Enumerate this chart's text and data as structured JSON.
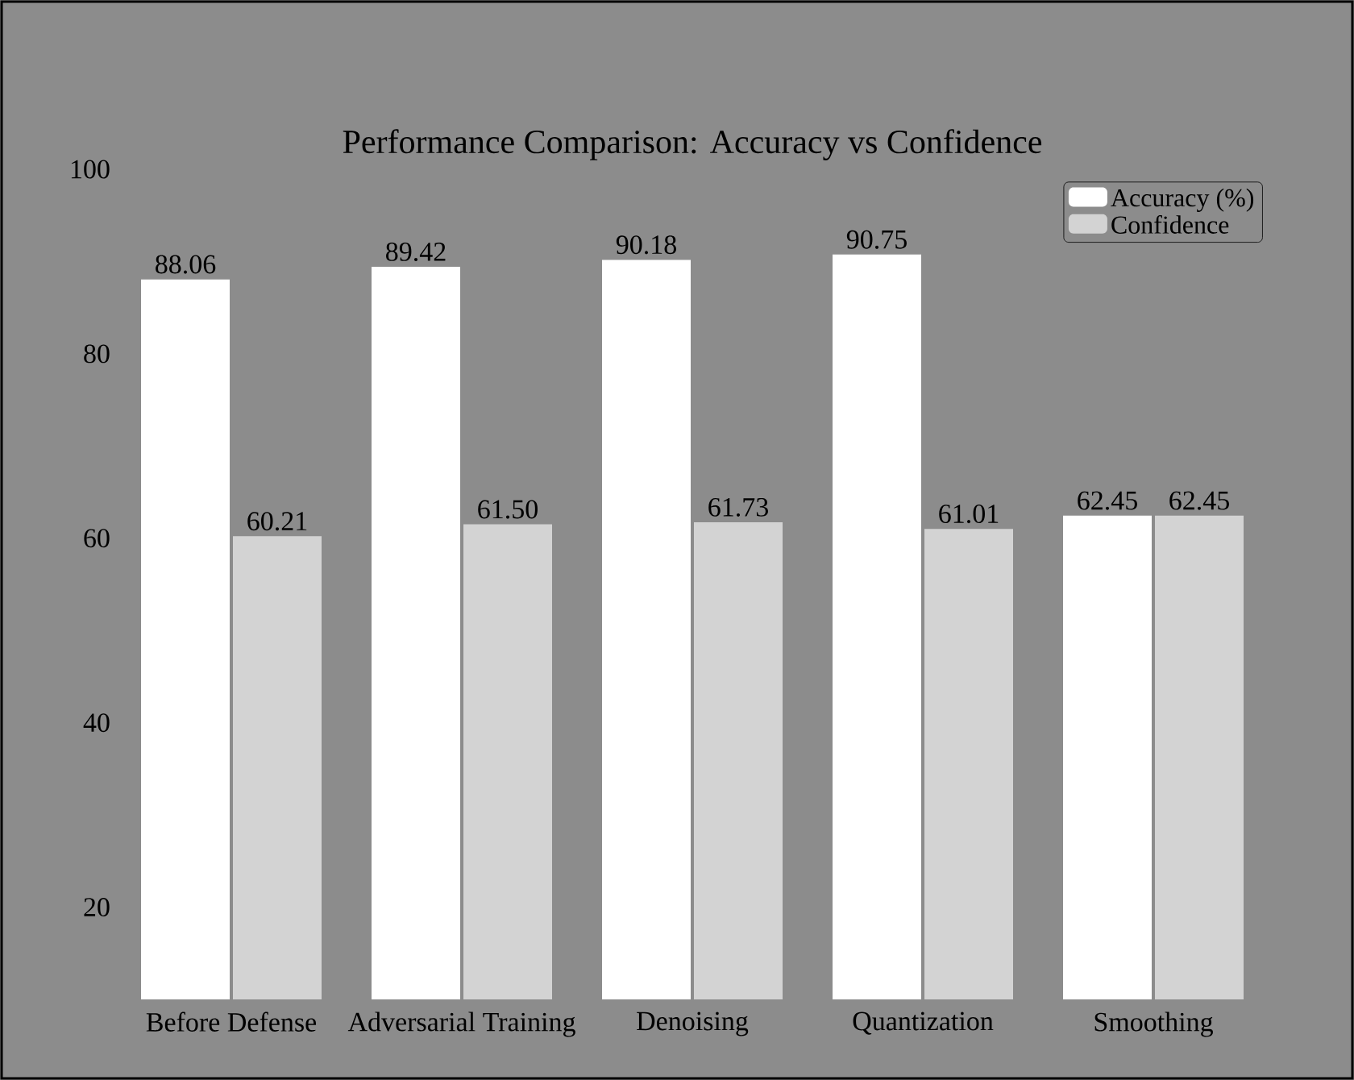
{
  "chart_data": {
    "type": "bar",
    "title": "Performance Comparison: Accuracy vs Confidence",
    "categories": [
      "Before Defense",
      "Adversarial Training",
      "Denoising",
      "Quantization",
      "Smoothing"
    ],
    "series": [
      {
        "name": "Accuracy (%)",
        "color": "#ffffff",
        "values": [
          88.06,
          89.42,
          90.18,
          90.75,
          62.45
        ],
        "value_labels": [
          "88.06",
          "89.42",
          "90.18",
          "90.75",
          "62.45"
        ]
      },
      {
        "name": "Confidence",
        "color": "#d3d3d3",
        "values": [
          60.21,
          61.5,
          61.73,
          61.01,
          62.45
        ],
        "value_labels": [
          "60.21",
          "61.50",
          "61.73",
          "61.01",
          "62.45"
        ]
      }
    ],
    "ylim": [
      10,
      100
    ],
    "yticks": [
      20,
      40,
      60,
      80,
      100
    ],
    "legend": "top right",
    "grid": false
  }
}
